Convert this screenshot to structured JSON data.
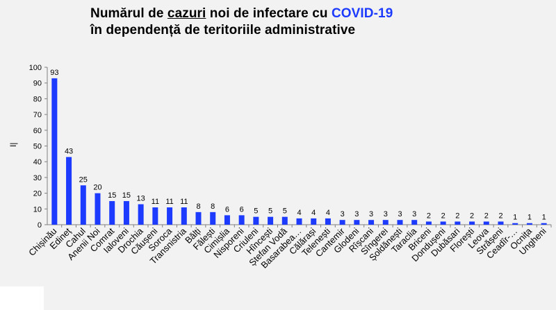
{
  "title": {
    "line1_part1": "Numărul de ",
    "line1_underlined": "cazuri",
    "line1_part2": " noi de infectare cu ",
    "line1_accent": "COVID-19",
    "line2": "în dependență de teritoriile administrative"
  },
  "colors": {
    "bar": "#1c3bff",
    "title_accent": "#1c3bff",
    "background": "#f2f2f2",
    "axis": "#808080"
  },
  "chart_data": {
    "type": "bar",
    "title": "Numărul de cazuri noi de infectare cu COVID-19 în dependență de teritoriile administrative",
    "ylabel": "I|",
    "xlabel": "",
    "ylim": [
      0,
      100
    ],
    "yticks": [
      0,
      10,
      20,
      30,
      40,
      50,
      60,
      70,
      80,
      90,
      100
    ],
    "grid": false,
    "legend": "none",
    "categories": [
      "Chișinău",
      "Edineț",
      "Cahul",
      "Anenii Noi",
      "Comrat",
      "Ialoveni",
      "Drochia",
      "Căușeni",
      "Soroca",
      "Transnistria",
      "Bălți",
      "Fălești",
      "Cimișlia",
      "Nisporeni",
      "Criuleni",
      "Hîncești",
      "Ștefan Vodă",
      "Basarabea…",
      "Călărași",
      "Telenești",
      "Cantemir",
      "Glodeni",
      "Rîșcani",
      "Sîngerei",
      "Șoldănești",
      "Taraclia",
      "Briceni",
      "Dondușeni",
      "Dubăsari",
      "Florești",
      "Leova",
      "Strășeni",
      "Ceadîr-…",
      "Ocnița",
      "Ungheni"
    ],
    "values": [
      93,
      43,
      25,
      20,
      15,
      15,
      13,
      11,
      11,
      11,
      8,
      8,
      6,
      6,
      5,
      5,
      5,
      4,
      4,
      4,
      3,
      3,
      3,
      3,
      3,
      3,
      2,
      2,
      2,
      2,
      2,
      2,
      1,
      1,
      1
    ],
    "data_labels": [
      "93",
      "43",
      "25",
      "20",
      "15",
      "15",
      "13",
      "11",
      "11",
      "11",
      "8",
      "8",
      "6",
      "6",
      "5",
      "5",
      "5",
      "4",
      "4",
      "4",
      "3",
      "3",
      "3",
      "3",
      "3",
      "3",
      "2",
      "2",
      "2",
      "2",
      "2",
      "2",
      "1",
      "1",
      "1"
    ]
  }
}
